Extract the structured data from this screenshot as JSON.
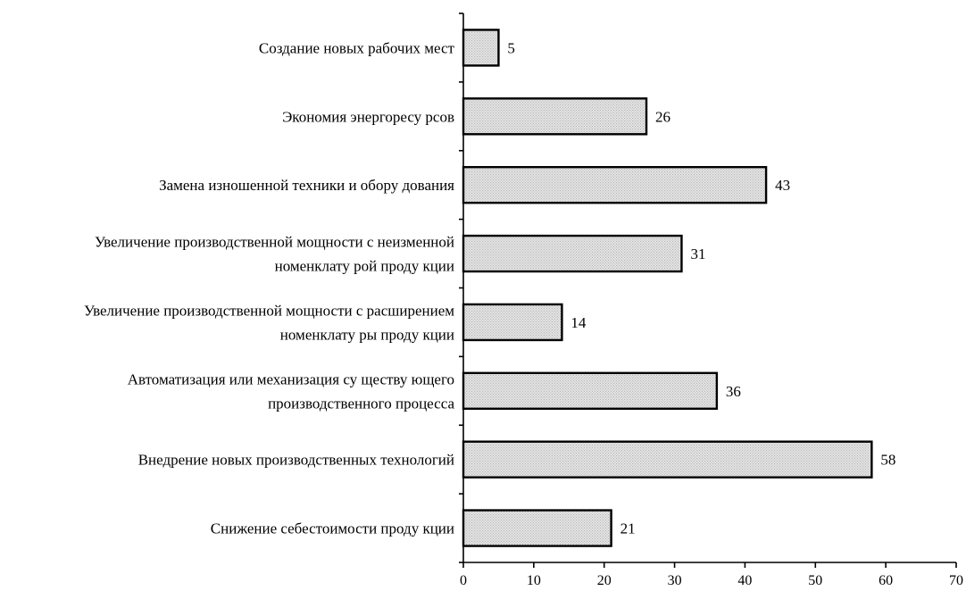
{
  "chart_data": {
    "type": "bar",
    "orientation": "horizontal",
    "categories": [
      [
        "Создание новых рабочих мест"
      ],
      [
        "Экономия энергоресу рсов"
      ],
      [
        "Замена изношенной техники и обору дования"
      ],
      [
        "Увеличение производственной мощности с неизменной",
        "номенклату рой проду кции"
      ],
      [
        "Увеличение производственной мощности с расширением",
        "номенклату ры проду кции"
      ],
      [
        "Автоматизация или механизация су ществу ющего",
        "производственного процесса"
      ],
      [
        "Внедрение новых производственных технологий"
      ],
      [
        "Снижение себестоимости проду кции"
      ]
    ],
    "values": [
      5,
      26,
      43,
      31,
      14,
      36,
      58,
      21
    ],
    "xlim": [
      0,
      70
    ],
    "xticks": [
      0,
      10,
      20,
      30,
      40,
      50,
      60,
      70
    ],
    "title": "",
    "xlabel": "",
    "ylabel": "",
    "grid": false,
    "bar_fill": "#e3e3e3",
    "bar_pattern_color": "#b4b4b4",
    "bar_stroke": "#000000"
  }
}
